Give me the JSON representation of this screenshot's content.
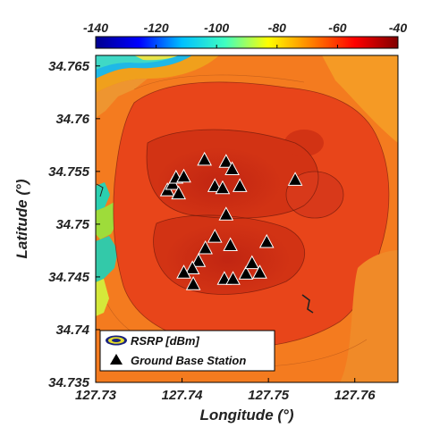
{
  "chart_data": {
    "type": "heatmap",
    "title": "",
    "xlabel": "Longitude (°)",
    "ylabel": "Latitude (°)",
    "xlim": [
      127.73,
      127.765
    ],
    "ylim": [
      34.735,
      34.766
    ],
    "x_ticks": [
      127.73,
      127.74,
      127.75,
      127.76
    ],
    "x_tick_labels": [
      "127.73",
      "127.74",
      "127.75",
      "127.76"
    ],
    "y_ticks": [
      34.735,
      34.74,
      34.745,
      34.75,
      34.755,
      34.76,
      34.765
    ],
    "y_tick_labels": [
      "34.735",
      "34.74",
      "34.745",
      "34.75",
      "34.755",
      "34.76",
      "34.765"
    ],
    "colorbar": {
      "position": "top",
      "range": [
        -140,
        -40
      ],
      "ticks": [
        -140,
        -120,
        -100,
        -80,
        -60,
        -40
      ],
      "tick_labels": [
        "-140",
        "-120",
        "-100",
        "-80",
        "-60",
        "-40"
      ],
      "colormap": "jet",
      "stops": [
        "#00008f",
        "#0000ff",
        "#00c0ff",
        "#40ffbf",
        "#ffff00",
        "#ff8000",
        "#ff0000",
        "#800000"
      ]
    },
    "series": [
      {
        "name": "Ground Base Station",
        "marker": "triangle",
        "color": "#000000",
        "points": [
          {
            "x": 127.7383,
            "y": 34.7532
          },
          {
            "x": 127.7389,
            "y": 34.7538
          },
          {
            "x": 127.7393,
            "y": 34.7544
          },
          {
            "x": 127.7396,
            "y": 34.7529
          },
          {
            "x": 127.7402,
            "y": 34.7545
          },
          {
            "x": 127.7426,
            "y": 34.7561
          },
          {
            "x": 127.7438,
            "y": 34.7536
          },
          {
            "x": 127.7447,
            "y": 34.7534
          },
          {
            "x": 127.7451,
            "y": 34.7559
          },
          {
            "x": 127.7458,
            "y": 34.7552
          },
          {
            "x": 127.7467,
            "y": 34.7536
          },
          {
            "x": 127.7451,
            "y": 34.7509
          },
          {
            "x": 127.7438,
            "y": 34.7488
          },
          {
            "x": 127.7427,
            "y": 34.7477
          },
          {
            "x": 127.7456,
            "y": 34.748
          },
          {
            "x": 127.7498,
            "y": 34.7483
          },
          {
            "x": 127.7531,
            "y": 34.7542
          },
          {
            "x": 127.7419,
            "y": 34.7465
          },
          {
            "x": 127.7412,
            "y": 34.7458
          },
          {
            "x": 127.7402,
            "y": 34.7454
          },
          {
            "x": 127.7449,
            "y": 34.7448
          },
          {
            "x": 127.7459,
            "y": 34.7448
          },
          {
            "x": 127.7474,
            "y": 34.7453
          },
          {
            "x": 127.7481,
            "y": 34.7463
          },
          {
            "x": 127.749,
            "y": 34.7454
          },
          {
            "x": 127.7413,
            "y": 34.7443
          }
        ]
      }
    ],
    "legend": {
      "placement": "bottom-left",
      "entries": [
        {
          "label": "RSRP [dBm]",
          "symbol": "contour-ellipse"
        },
        {
          "label": "Ground Base Station",
          "symbol": "triangle"
        }
      ]
    },
    "grid": false
  }
}
